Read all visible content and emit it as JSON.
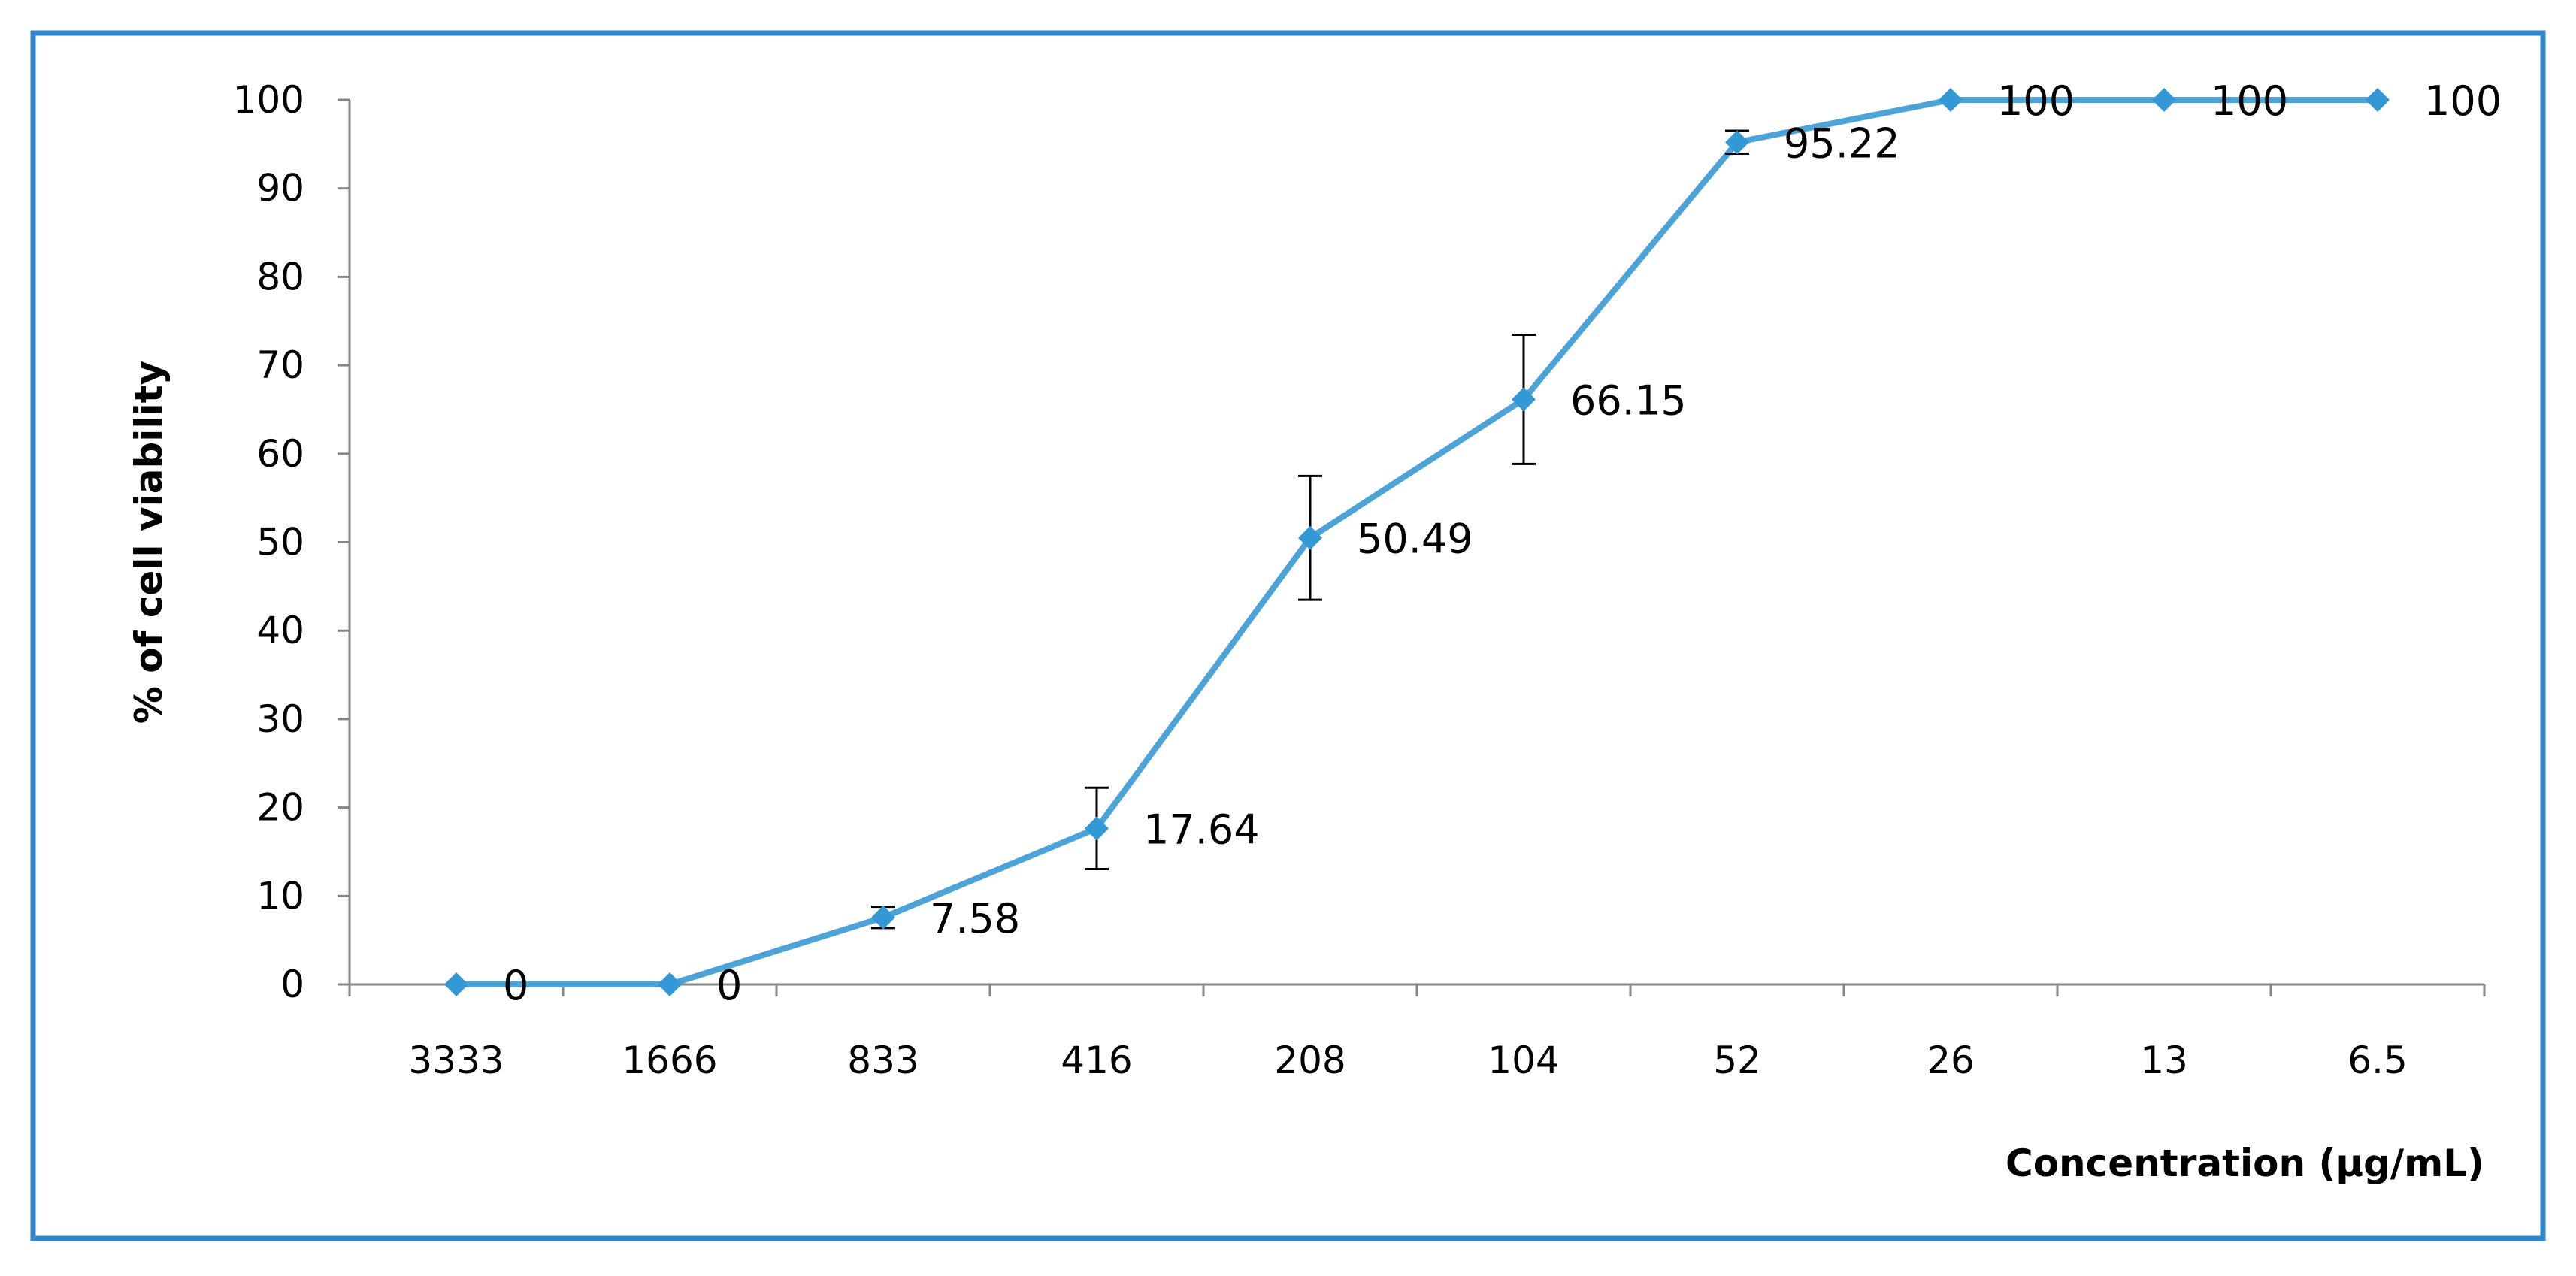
{
  "chart_data": {
    "type": "line",
    "title": "",
    "xlabel": "Concentration (µg/mL)",
    "ylabel": "% of cell viability",
    "categories": [
      "3333",
      "1666",
      "833",
      "416",
      "208",
      "104",
      "52",
      "26",
      "13",
      "6.5"
    ],
    "series": [
      {
        "values": [
          0,
          0,
          7.58,
          17.64,
          50.49,
          66.15,
          95.22,
          100,
          100,
          100
        ],
        "error": [
          0,
          0,
          1.2,
          4.6,
          7.0,
          7.3,
          1.3,
          0,
          0,
          0
        ],
        "data_labels": [
          "0",
          "0",
          "7.58",
          "17.64",
          "50.49",
          "66.15",
          "95.22",
          "100",
          "100",
          "100"
        ]
      }
    ],
    "ylim": [
      0,
      100
    ],
    "yticks": [
      "0",
      "10",
      "20",
      "30",
      "40",
      "50",
      "60",
      "70",
      "80",
      "90",
      "100"
    ],
    "grid": false,
    "legend": "none",
    "colors": {
      "line": "#4BA3D8",
      "marker": "#3399D6",
      "frame": "#2E86C9",
      "axis": "#868686",
      "error_bar": "#000000"
    }
  }
}
